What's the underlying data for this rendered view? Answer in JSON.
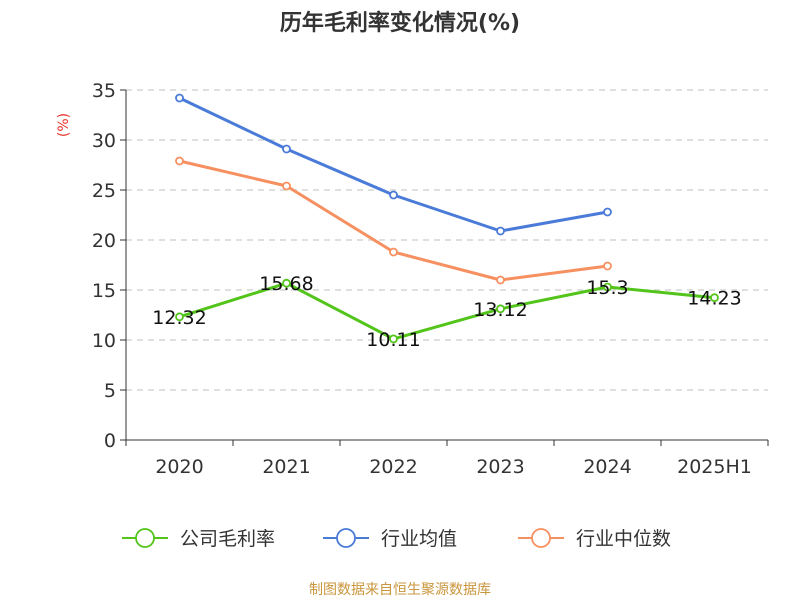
{
  "chart_data": {
    "type": "line",
    "title": "历年毛利率变化情况(%)",
    "ylabel": "(%)",
    "categories": [
      "2020",
      "2021",
      "2022",
      "2023",
      "2024",
      "2025H1"
    ],
    "ylim": [
      0,
      35
    ],
    "yticks": [
      0,
      5,
      10,
      15,
      20,
      25,
      30,
      35
    ],
    "grid": true,
    "legend_position": "bottom",
    "series": [
      {
        "name": "公司毛利率",
        "color": "#52c41a",
        "values": [
          12.32,
          15.68,
          10.11,
          13.12,
          15.3,
          14.23
        ],
        "labels": [
          "12.32",
          "15.68",
          "10.11",
          "13.12",
          "15.3",
          "14.23"
        ]
      },
      {
        "name": "行业均值",
        "color": "#4a7bd8",
        "values": [
          34.2,
          29.1,
          24.5,
          20.9,
          22.8,
          null
        ]
      },
      {
        "name": "行业中位数",
        "color": "#f79060",
        "values": [
          27.9,
          25.4,
          18.8,
          16.0,
          17.4,
          null
        ]
      }
    ],
    "source": "制图数据来自恒生聚源数据库",
    "colors": {
      "axis": "#333333",
      "grid": "#cccccc",
      "ylabel": "#e8342c",
      "source": "#c8963c"
    }
  }
}
